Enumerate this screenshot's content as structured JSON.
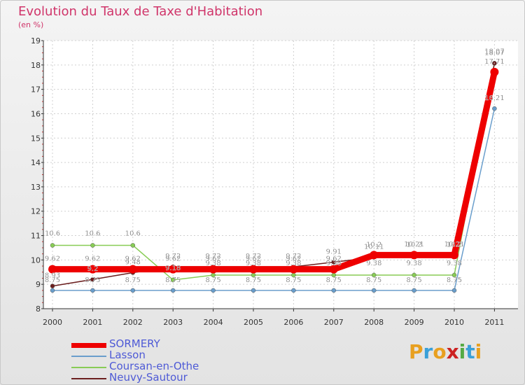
{
  "chart_data": {
    "type": "line",
    "title": "Evolution du Taux de Taxe d'Habitation",
    "subtitle": "(en %)",
    "ylim": [
      8,
      19
    ],
    "yticks": [
      "8",
      "9",
      "10",
      "11",
      "12",
      "13",
      "14",
      "15",
      "16",
      "17",
      "18",
      "19"
    ],
    "categories": [
      "2000",
      "2001",
      "2002",
      "2003",
      "2004",
      "2005",
      "2006",
      "2007",
      "2008",
      "2009",
      "2010",
      "2011"
    ],
    "series": [
      {
        "name": "SORMERY",
        "color": "#ee0000",
        "values": [
          9.62,
          9.62,
          9.62,
          9.62,
          9.62,
          9.62,
          9.62,
          9.62,
          10.2,
          10.2,
          10.2,
          17.71
        ],
        "labels": [
          "9.62",
          "9.62",
          "9.62",
          "9.62",
          "9.62",
          "9.62",
          "9.62",
          "9.62",
          "10.2",
          "10.2",
          "10.2",
          "17.71"
        ]
      },
      {
        "name": "Lasson",
        "color": "#6a9ecc",
        "values": [
          8.75,
          8.75,
          8.75,
          8.75,
          8.75,
          8.75,
          8.75,
          8.75,
          8.75,
          8.75,
          8.75,
          16.21
        ],
        "labels": [
          "8.75",
          "8.75",
          "8.75",
          "8.75",
          "8.75",
          "8.75",
          "8.75",
          "8.75",
          "8.75",
          "8.75",
          "8.75",
          "16.21"
        ]
      },
      {
        "name": "Coursan-en-Othe",
        "color": "#88cc55",
        "values": [
          10.6,
          10.6,
          10.6,
          9.18,
          9.38,
          9.38,
          9.38,
          9.38,
          9.38,
          9.38,
          9.38,
          18.07
        ],
        "labels": [
          "10.6",
          "10.6",
          "10.6",
          "9.18",
          "9.38",
          "9.38",
          "9.38",
          "9.38",
          "9.38",
          "9.38",
          "9.38",
          "18.07"
        ]
      },
      {
        "name": "Neuvy-Sautour",
        "color": "#6b1f1f",
        "values": [
          8.93,
          9.2,
          9.48,
          9.72,
          9.72,
          9.72,
          9.72,
          9.91,
          10.11,
          10.21,
          10.21,
          18.07
        ],
        "labels": [
          "8.93",
          "9.2",
          "9.48",
          "9.72",
          "9.72",
          "9.72",
          "9.72",
          "9.91",
          "10.11",
          "10.21",
          "10.21",
          "18.07"
        ]
      }
    ]
  },
  "logo": {
    "letters": [
      "P",
      "r",
      "o",
      "x",
      "i",
      "t",
      "i"
    ],
    "colors": [
      "#e8a020",
      "#3aa0d8",
      "#e8a020",
      "#cc2222",
      "#55aa44",
      "#3aa0d8",
      "#e8a020"
    ]
  }
}
